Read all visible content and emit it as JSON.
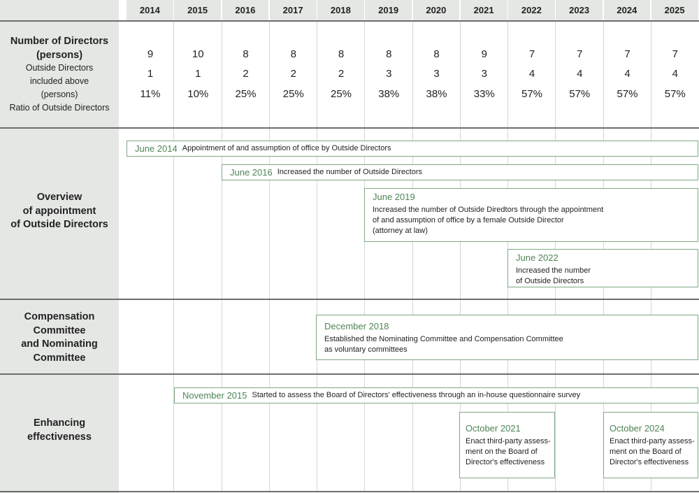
{
  "header": {
    "years": [
      "2014",
      "2015",
      "2016",
      "2017",
      "2018",
      "2019",
      "2020",
      "2021",
      "2022",
      "2023",
      "2024",
      "2025"
    ]
  },
  "directors": {
    "label": [
      "Number of Directors",
      "(persons)"
    ],
    "sub_labels": [
      "Outside Directors",
      "included above",
      "(persons)",
      "Ratio of Outside Directors"
    ],
    "rows": [
      [
        "9",
        "10",
        "8",
        "8",
        "8",
        "8",
        "8",
        "9",
        "7",
        "7",
        "7",
        "7"
      ],
      [
        "1",
        "1",
        "2",
        "2",
        "2",
        "3",
        "3",
        "3",
        "4",
        "4",
        "4",
        "4"
      ],
      [
        "11%",
        "10%",
        "25%",
        "25%",
        "25%",
        "38%",
        "38%",
        "33%",
        "57%",
        "57%",
        "57%",
        "57%"
      ]
    ]
  },
  "overview": {
    "label": [
      "Overview",
      "of appointment",
      "of Outside Directors"
    ],
    "events": [
      {
        "date": "June 2014",
        "text": [
          "Appointment of and assumption of office by Outside Directors"
        ]
      },
      {
        "date": "June 2016",
        "text": [
          "Increased the number of Outside Directors"
        ]
      },
      {
        "date": "June 2019",
        "text": [
          "Increased the number of Outside Diredtors through the appointment",
          "of and assumption of office by a female Outside Director",
          "(attorney at law)"
        ]
      },
      {
        "date": "June 2022",
        "text": [
          "Increased the number",
          "of Outside Directors"
        ]
      }
    ]
  },
  "committees": {
    "label": [
      "Compensation",
      "Committee",
      "and Nominating",
      "Committee"
    ],
    "events": [
      {
        "date": "December 2018",
        "text": [
          "Established the Nominating Committee and Compensation Committee",
          "as voluntary committees"
        ]
      }
    ]
  },
  "effectiveness": {
    "label": [
      "Enhancing",
      "effectiveness"
    ],
    "events": [
      {
        "date": "November 2015",
        "text": [
          "Started to assess the Board of Directors' effectiveness through an in-house questionnaire survey"
        ]
      },
      {
        "date": "October 2021",
        "text": [
          "Enact third-party assess-",
          "ment on the Board of",
          "Director's effectiveness"
        ]
      },
      {
        "date": "October 2024",
        "text": [
          "Enact third-party assess-",
          "ment on the Board of",
          "Director's effectiveness"
        ]
      }
    ]
  }
}
